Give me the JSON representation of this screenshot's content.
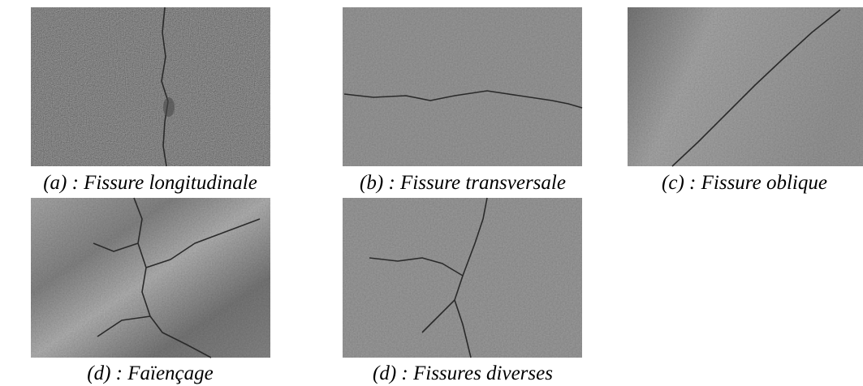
{
  "figures": [
    {
      "caption": "(a) : Fissure longitudinale"
    },
    {
      "caption": "(b) : Fissure transversale"
    },
    {
      "caption": "(c) : Fissure oblique"
    },
    {
      "caption": "(d) : Faïençage"
    },
    {
      "caption": "(d) : Fissures diverses"
    }
  ]
}
